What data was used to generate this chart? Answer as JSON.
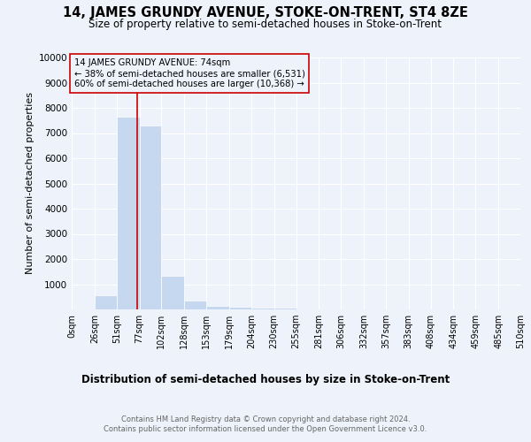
{
  "title1": "14, JAMES GRUNDY AVENUE, STOKE-ON-TRENT, ST4 8ZE",
  "title2": "Size of property relative to semi-detached houses in Stoke-on-Trent",
  "xlabel": "Distribution of semi-detached houses by size in Stoke-on-Trent",
  "ylabel": "Number of semi-detached properties",
  "bin_labels": [
    "0sqm",
    "26sqm",
    "51sqm",
    "77sqm",
    "102sqm",
    "128sqm",
    "153sqm",
    "179sqm",
    "204sqm",
    "230sqm",
    "255sqm",
    "281sqm",
    "306sqm",
    "332sqm",
    "357sqm",
    "383sqm",
    "408sqm",
    "434sqm",
    "459sqm",
    "485sqm",
    "510sqm"
  ],
  "bar_values": [
    0,
    550,
    7650,
    7300,
    1320,
    350,
    155,
    110,
    80,
    55,
    0,
    0,
    0,
    0,
    0,
    0,
    0,
    0,
    0,
    0,
    0
  ],
  "bar_color": "#c5d8f0",
  "property_size": 74,
  "property_label": "14 JAMES GRUNDY AVENUE: 74sqm",
  "pct_smaller": 38,
  "n_smaller": 6531,
  "pct_larger": 60,
  "n_larger": 10368,
  "red_line_color": "#cc0000",
  "ylim": [
    0,
    10000
  ],
  "yticks": [
    0,
    1000,
    2000,
    3000,
    4000,
    5000,
    6000,
    7000,
    8000,
    9000,
    10000
  ],
  "bin_edges": [
    0,
    26,
    51,
    77,
    102,
    128,
    153,
    179,
    204,
    230,
    255,
    281,
    306,
    332,
    357,
    383,
    408,
    434,
    459,
    485,
    510
  ],
  "footer1": "Contains HM Land Registry data © Crown copyright and database right 2024.",
  "footer2": "Contains public sector information licensed under the Open Government Licence v3.0.",
  "bg_color": "#eef2fa",
  "grid_color": "#ffffff"
}
